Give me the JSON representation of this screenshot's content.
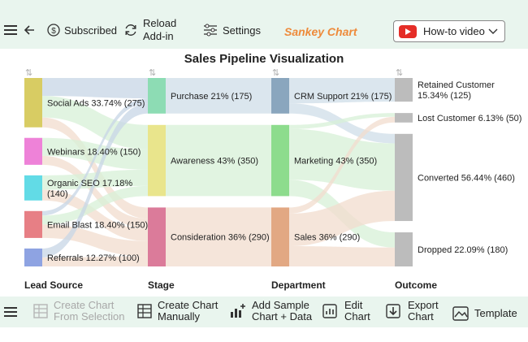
{
  "toolbar": {
    "subscribed_label": "Subscribed",
    "reload_label_line1": "Reload",
    "reload_label_line2": "Add-in",
    "settings_label": "Settings",
    "app_title": "Sankey Chart",
    "howto_label": "How-to video"
  },
  "bottom_toolbar": {
    "create_from_selection_line1": "Create Chart",
    "create_from_selection_line2": "From Selection",
    "create_manually_line1": "Create Chart",
    "create_manually_line2": "Manually",
    "add_sample_line1": "Add Sample",
    "add_sample_line2": "Chart + Data",
    "edit_line1": "Edit",
    "edit_line2": "Chart",
    "export_line1": "Export",
    "export_line2": "Chart",
    "template_label": "Template"
  },
  "chart_data": {
    "type": "sankey",
    "title": "Sales Pipeline Visualization",
    "columns": [
      "Lead Source",
      "Stage",
      "Department",
      "Outcome"
    ],
    "nodes": [
      {
        "id": "social",
        "column": 0,
        "label": "Social Ads 33.74% (275)",
        "value": 275,
        "color": "#d8cc63"
      },
      {
        "id": "webinars",
        "column": 0,
        "label": "Webinars 18.40% (150)",
        "value": 150,
        "color": "#ee82d8"
      },
      {
        "id": "seo",
        "column": 0,
        "label": "Organic SEO 17.18% (140)",
        "value": 140,
        "color": "#62dbe6"
      },
      {
        "id": "email",
        "column": 0,
        "label": "Email Blast 18.40% (150)",
        "value": 150,
        "color": "#e77f85"
      },
      {
        "id": "referrals",
        "column": 0,
        "label": "Referrals 12.27% (100)",
        "value": 100,
        "color": "#8ea3e2"
      },
      {
        "id": "purchase",
        "column": 1,
        "label": "Purchase 21% (175)",
        "value": 175,
        "color": "#8ddcb4"
      },
      {
        "id": "awareness",
        "column": 1,
        "label": "Awareness 43% (350)",
        "value": 350,
        "color": "#e9e58c"
      },
      {
        "id": "consideration",
        "column": 1,
        "label": "Consideration 36% (290)",
        "value": 290,
        "color": "#db7b9a"
      },
      {
        "id": "crm",
        "column": 2,
        "label": "CRM Support 21% (175)",
        "value": 175,
        "color": "#8aa6be"
      },
      {
        "id": "marketing",
        "column": 2,
        "label": "Marketing 43% (350)",
        "value": 350,
        "color": "#8ddc8d"
      },
      {
        "id": "sales",
        "column": 2,
        "label": "Sales 36% (290)",
        "value": 290,
        "color": "#e2a883"
      },
      {
        "id": "retained",
        "column": 3,
        "label": "Retained Customer 15.34% (125)",
        "value": 125,
        "color": "#bcbcbc"
      },
      {
        "id": "lost",
        "column": 3,
        "label": "Lost Customer 6.13% (50)",
        "value": 50,
        "color": "#bcbcbc"
      },
      {
        "id": "converted",
        "column": 3,
        "label": "Converted 56.44% (460)",
        "value": 460,
        "color": "#bcbcbc"
      },
      {
        "id": "dropped",
        "column": 3,
        "label": "Dropped 22.09% (180)",
        "value": 180,
        "color": "#bcbcbc"
      }
    ],
    "links": [
      {
        "source": "social",
        "target": "purchase",
        "value": 100,
        "color": "#c7d6e6"
      },
      {
        "source": "social",
        "target": "awareness",
        "value": 120,
        "color": "#d7f0d7"
      },
      {
        "source": "social",
        "target": "consideration",
        "value": 55,
        "color": "#f2dccd"
      },
      {
        "source": "webinars",
        "target": "awareness",
        "value": 100,
        "color": "#d7f0d7"
      },
      {
        "source": "webinars",
        "target": "consideration",
        "value": 50,
        "color": "#f2dccd"
      },
      {
        "source": "seo",
        "target": "awareness",
        "value": 80,
        "color": "#d7f0d7"
      },
      {
        "source": "seo",
        "target": "consideration",
        "value": 60,
        "color": "#f2dccd"
      },
      {
        "source": "email",
        "target": "purchase",
        "value": 25,
        "color": "#c7d6e6"
      },
      {
        "source": "email",
        "target": "awareness",
        "value": 50,
        "color": "#d7f0d7"
      },
      {
        "source": "email",
        "target": "consideration",
        "value": 75,
        "color": "#f2dccd"
      },
      {
        "source": "referrals",
        "target": "purchase",
        "value": 50,
        "color": "#c7d6e6"
      },
      {
        "source": "referrals",
        "target": "consideration",
        "value": 50,
        "color": "#f2dccd"
      },
      {
        "source": "purchase",
        "target": "crm",
        "value": 175,
        "color": "#cfdde8"
      },
      {
        "source": "awareness",
        "target": "marketing",
        "value": 350,
        "color": "#d7f0d7"
      },
      {
        "source": "consideration",
        "target": "sales",
        "value": 290,
        "color": "#f2dccd"
      },
      {
        "source": "crm",
        "target": "retained",
        "value": 125,
        "color": "#cfdde8"
      },
      {
        "source": "crm",
        "target": "converted",
        "value": 50,
        "color": "#cfdde8"
      },
      {
        "source": "marketing",
        "target": "lost",
        "value": 20,
        "color": "#d7f0d7"
      },
      {
        "source": "marketing",
        "target": "converted",
        "value": 250,
        "color": "#d7f0d7"
      },
      {
        "source": "marketing",
        "target": "dropped",
        "value": 80,
        "color": "#d7f0d7"
      },
      {
        "source": "sales",
        "target": "lost",
        "value": 30,
        "color": "#f2dccd"
      },
      {
        "source": "sales",
        "target": "converted",
        "value": 160,
        "color": "#f2dccd"
      },
      {
        "source": "sales",
        "target": "dropped",
        "value": 100,
        "color": "#f2dccd"
      }
    ]
  }
}
